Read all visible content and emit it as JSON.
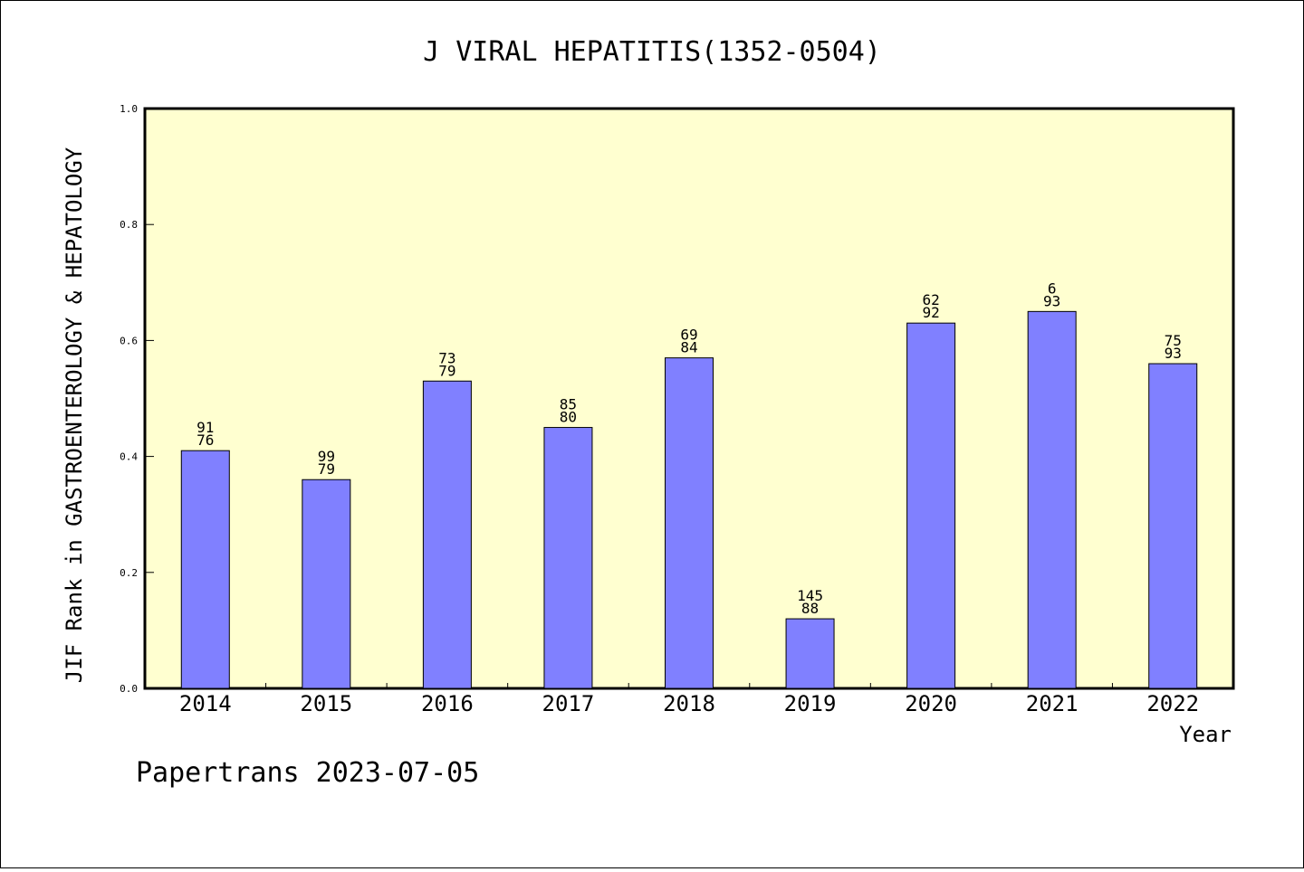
{
  "chart_data": {
    "type": "bar",
    "title": "J VIRAL HEPATITIS(1352-0504)",
    "xlabel": "Year",
    "ylabel": "JIF Rank in GASTROENTEROLOGY & HEPATOLOGY",
    "ylim": [
      0.0,
      1.0
    ],
    "yticks": [
      "0.0",
      "0.2",
      "0.4",
      "0.6",
      "0.8",
      "1.0"
    ],
    "categories": [
      "2014",
      "2015",
      "2016",
      "2017",
      "2018",
      "2019",
      "2020",
      "2021",
      "2022"
    ],
    "values": [
      0.41,
      0.36,
      0.53,
      0.45,
      0.57,
      0.12,
      0.63,
      0.65,
      0.56
    ],
    "label_top": [
      "91",
      "99",
      "73",
      "85",
      "69",
      "145",
      "62",
      "6",
      "75"
    ],
    "label_bottom": [
      "76",
      "79",
      "79",
      "80",
      "84",
      "88",
      "92",
      "93",
      "93"
    ],
    "grid": false,
    "legend": "none",
    "colors": {
      "bar": "#8080ff",
      "plot_bg": "#ffffd0",
      "axis": "#000000"
    }
  },
  "footer": "Papertrans 2023-07-05"
}
